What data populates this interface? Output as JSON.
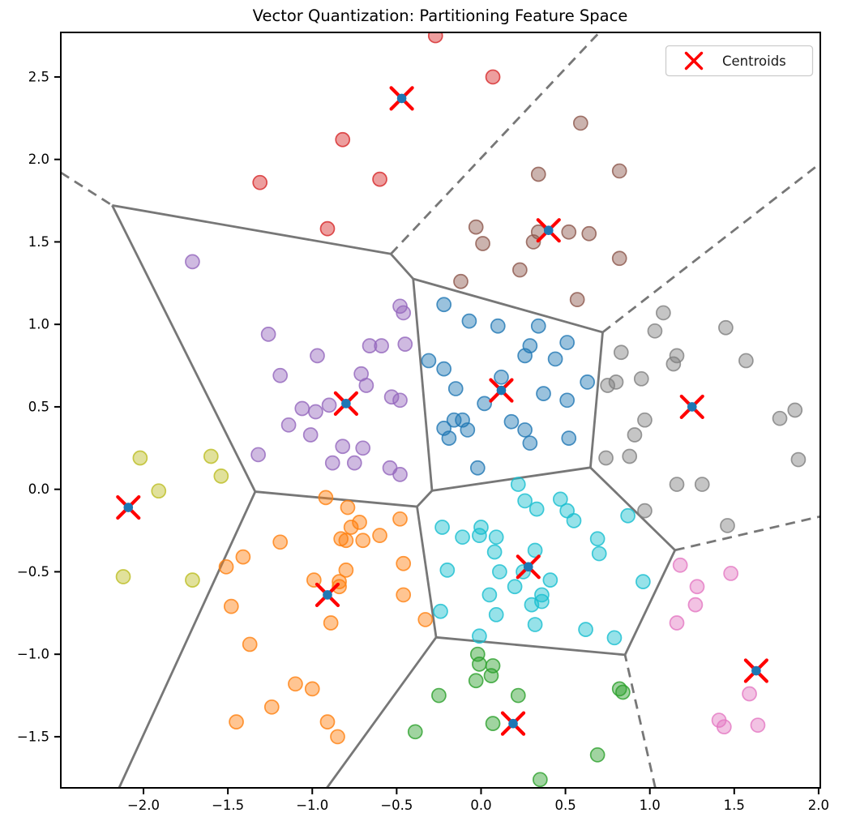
{
  "title": "Vector Quantization: Partitioning Feature Space",
  "legend": {
    "label": "Centroids"
  },
  "colors": {
    "centroid_x": "#ff0000",
    "centroid_dot": "#1f77b4",
    "voronoi_line": "#777777",
    "axis": "#000000",
    "background": "#ffffff",
    "legend_border": "#cccccc"
  },
  "chart_data": {
    "type": "scatter",
    "title": "Vector Quantization: Partitioning Feature Space",
    "xlabel": "",
    "ylabel": "",
    "xlim": [
      -2.49,
      2.01
    ],
    "ylim": [
      -1.81,
      2.77
    ],
    "xticks": [
      -2.0,
      -1.5,
      -1.0,
      -0.5,
      0.0,
      0.5,
      1.0,
      1.5,
      2.0
    ],
    "yticks": [
      -1.5,
      -1.0,
      -0.5,
      0.0,
      0.5,
      1.0,
      1.5,
      2.0,
      2.5
    ],
    "grid": false,
    "legend_position": "upper right",
    "voronoi": {
      "finite_ridge_style": "solid",
      "infinite_ridge_style": "dashed"
    },
    "clusters": [
      {
        "name": "cluster-red",
        "color": "#d62728",
        "centroid": [
          -0.47,
          2.37
        ],
        "points": [
          [
            -0.27,
            2.75
          ],
          [
            0.07,
            2.5
          ],
          [
            -0.82,
            2.12
          ],
          [
            -0.6,
            1.88
          ],
          [
            -1.31,
            1.86
          ],
          [
            -0.91,
            1.58
          ]
        ]
      },
      {
        "name": "cluster-brown",
        "color": "#8c564b",
        "centroid": [
          0.4,
          1.57
        ],
        "points": [
          [
            0.59,
            2.22
          ],
          [
            0.82,
            1.93
          ],
          [
            0.34,
            1.91
          ],
          [
            -0.03,
            1.59
          ],
          [
            0.34,
            1.56
          ],
          [
            0.52,
            1.56
          ],
          [
            0.64,
            1.55
          ],
          [
            0.31,
            1.5
          ],
          [
            0.01,
            1.49
          ],
          [
            0.82,
            1.4
          ],
          [
            0.23,
            1.33
          ],
          [
            -0.12,
            1.26
          ],
          [
            0.57,
            1.15
          ]
        ]
      },
      {
        "name": "cluster-blue",
        "color": "#1f77b4",
        "centroid": [
          0.12,
          0.6
        ],
        "points": [
          [
            -0.22,
            1.12
          ],
          [
            -0.07,
            1.02
          ],
          [
            0.1,
            0.99
          ],
          [
            0.34,
            0.99
          ],
          [
            0.51,
            0.89
          ],
          [
            0.29,
            0.87
          ],
          [
            0.26,
            0.81
          ],
          [
            0.44,
            0.79
          ],
          [
            -0.31,
            0.78
          ],
          [
            -0.22,
            0.73
          ],
          [
            0.12,
            0.68
          ],
          [
            0.63,
            0.65
          ],
          [
            -0.15,
            0.61
          ],
          [
            0.37,
            0.58
          ],
          [
            0.51,
            0.54
          ],
          [
            0.02,
            0.52
          ],
          [
            -0.16,
            0.42
          ],
          [
            -0.11,
            0.42
          ],
          [
            0.18,
            0.41
          ],
          [
            -0.22,
            0.37
          ],
          [
            -0.08,
            0.36
          ],
          [
            0.26,
            0.36
          ],
          [
            -0.19,
            0.31
          ],
          [
            0.29,
            0.28
          ],
          [
            0.52,
            0.31
          ],
          [
            -0.02,
            0.13
          ]
        ]
      },
      {
        "name": "cluster-purple",
        "color": "#9467bd",
        "centroid": [
          -0.8,
          0.52
        ],
        "points": [
          [
            -1.71,
            1.38
          ],
          [
            -0.48,
            1.11
          ],
          [
            -0.46,
            1.07
          ],
          [
            -1.26,
            0.94
          ],
          [
            -0.66,
            0.87
          ],
          [
            -0.59,
            0.87
          ],
          [
            -0.45,
            0.88
          ],
          [
            -0.97,
            0.81
          ],
          [
            -1.19,
            0.69
          ],
          [
            -0.71,
            0.7
          ],
          [
            -0.68,
            0.63
          ],
          [
            -0.53,
            0.56
          ],
          [
            -0.48,
            0.54
          ],
          [
            -0.9,
            0.51
          ],
          [
            -1.06,
            0.49
          ],
          [
            -0.98,
            0.47
          ],
          [
            -1.14,
            0.39
          ],
          [
            -1.01,
            0.33
          ],
          [
            -1.32,
            0.21
          ],
          [
            -0.82,
            0.26
          ],
          [
            -0.7,
            0.25
          ],
          [
            -0.75,
            0.16
          ],
          [
            -0.88,
            0.16
          ],
          [
            -0.54,
            0.13
          ],
          [
            -0.48,
            0.09
          ]
        ]
      },
      {
        "name": "cluster-gray",
        "color": "#7f7f7f",
        "centroid": [
          1.25,
          0.5
        ],
        "points": [
          [
            1.08,
            1.07
          ],
          [
            1.03,
            0.96
          ],
          [
            1.45,
            0.98
          ],
          [
            0.83,
            0.83
          ],
          [
            1.16,
            0.81
          ],
          [
            1.14,
            0.76
          ],
          [
            1.57,
            0.78
          ],
          [
            0.8,
            0.65
          ],
          [
            0.75,
            0.63
          ],
          [
            0.95,
            0.67
          ],
          [
            0.97,
            0.42
          ],
          [
            0.91,
            0.33
          ],
          [
            0.74,
            0.19
          ],
          [
            0.88,
            0.2
          ],
          [
            1.77,
            0.43
          ],
          [
            1.86,
            0.48
          ],
          [
            1.88,
            0.18
          ],
          [
            1.16,
            0.03
          ],
          [
            1.31,
            0.03
          ],
          [
            0.97,
            -0.13
          ],
          [
            1.46,
            -0.22
          ]
        ]
      },
      {
        "name": "cluster-olive",
        "color": "#bcbd22",
        "centroid": [
          -2.09,
          -0.11
        ],
        "points": [
          [
            -2.02,
            0.19
          ],
          [
            -1.6,
            0.2
          ],
          [
            -1.54,
            0.08
          ],
          [
            -1.91,
            -0.01
          ],
          [
            -2.12,
            -0.53
          ],
          [
            -1.71,
            -0.55
          ]
        ]
      },
      {
        "name": "cluster-cyan",
        "color": "#17becf",
        "centroid": [
          0.28,
          -0.47
        ],
        "points": [
          [
            0.22,
            0.03
          ],
          [
            0.26,
            -0.07
          ],
          [
            0.33,
            -0.12
          ],
          [
            0.47,
            -0.06
          ],
          [
            0.51,
            -0.13
          ],
          [
            0.55,
            -0.19
          ],
          [
            -0.23,
            -0.23
          ],
          [
            0.0,
            -0.23
          ],
          [
            -0.11,
            -0.29
          ],
          [
            -0.01,
            -0.28
          ],
          [
            0.09,
            -0.29
          ],
          [
            0.87,
            -0.16
          ],
          [
            0.69,
            -0.3
          ],
          [
            0.7,
            -0.39
          ],
          [
            0.08,
            -0.38
          ],
          [
            0.32,
            -0.37
          ],
          [
            -0.2,
            -0.49
          ],
          [
            0.25,
            -0.5
          ],
          [
            0.11,
            -0.5
          ],
          [
            0.41,
            -0.55
          ],
          [
            0.2,
            -0.59
          ],
          [
            0.05,
            -0.64
          ],
          [
            0.36,
            -0.64
          ],
          [
            0.36,
            -0.68
          ],
          [
            0.3,
            -0.7
          ],
          [
            0.96,
            -0.56
          ],
          [
            -0.24,
            -0.74
          ],
          [
            0.09,
            -0.76
          ],
          [
            0.32,
            -0.82
          ],
          [
            0.62,
            -0.85
          ],
          [
            0.79,
            -0.9
          ],
          [
            -0.01,
            -0.89
          ]
        ]
      },
      {
        "name": "cluster-orange",
        "color": "#ff7f0e",
        "centroid": [
          -0.91,
          -0.64
        ],
        "points": [
          [
            -0.92,
            -0.05
          ],
          [
            -0.79,
            -0.11
          ],
          [
            -0.72,
            -0.2
          ],
          [
            -0.77,
            -0.23
          ],
          [
            -0.83,
            -0.3
          ],
          [
            -0.8,
            -0.31
          ],
          [
            -0.7,
            -0.31
          ],
          [
            -0.6,
            -0.28
          ],
          [
            -0.48,
            -0.18
          ],
          [
            -1.19,
            -0.32
          ],
          [
            -1.41,
            -0.41
          ],
          [
            -1.51,
            -0.47
          ],
          [
            -0.46,
            -0.45
          ],
          [
            -0.8,
            -0.49
          ],
          [
            -0.84,
            -0.56
          ],
          [
            -0.99,
            -0.55
          ],
          [
            -0.84,
            -0.59
          ],
          [
            -0.46,
            -0.64
          ],
          [
            -1.48,
            -0.71
          ],
          [
            -0.33,
            -0.79
          ],
          [
            -0.89,
            -0.81
          ],
          [
            -1.37,
            -0.94
          ],
          [
            -1.1,
            -1.18
          ],
          [
            -1.0,
            -1.21
          ],
          [
            -1.24,
            -1.32
          ],
          [
            -1.45,
            -1.41
          ],
          [
            -0.91,
            -1.41
          ],
          [
            -0.85,
            -1.5
          ]
        ]
      },
      {
        "name": "cluster-green",
        "color": "#2ca02c",
        "centroid": [
          0.19,
          -1.42
        ],
        "points": [
          [
            -0.02,
            -1.0
          ],
          [
            -0.01,
            -1.06
          ],
          [
            0.07,
            -1.07
          ],
          [
            0.06,
            -1.13
          ],
          [
            -0.03,
            -1.16
          ],
          [
            -0.25,
            -1.25
          ],
          [
            0.22,
            -1.25
          ],
          [
            0.82,
            -1.21
          ],
          [
            0.84,
            -1.23
          ],
          [
            0.07,
            -1.42
          ],
          [
            -0.39,
            -1.47
          ],
          [
            0.69,
            -1.61
          ],
          [
            0.35,
            -1.76
          ]
        ]
      },
      {
        "name": "cluster-pink",
        "color": "#e377c2",
        "centroid": [
          1.63,
          -1.1
        ],
        "points": [
          [
            1.18,
            -0.46
          ],
          [
            1.48,
            -0.51
          ],
          [
            1.28,
            -0.59
          ],
          [
            1.27,
            -0.7
          ],
          [
            1.16,
            -0.81
          ],
          [
            1.59,
            -1.24
          ],
          [
            1.41,
            -1.4
          ],
          [
            1.44,
            -1.44
          ],
          [
            1.64,
            -1.43
          ]
        ]
      }
    ]
  }
}
